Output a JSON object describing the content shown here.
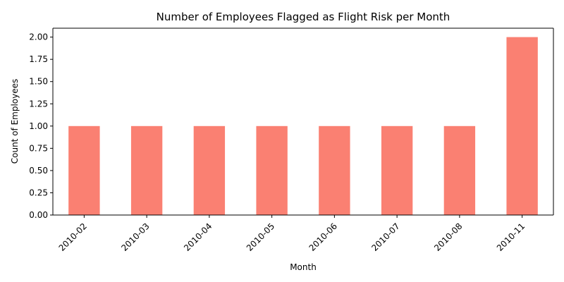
{
  "chart_data": {
    "type": "bar",
    "title": "Number of Employees Flagged as Flight Risk per Month",
    "xlabel": "Month",
    "ylabel": "Count of Employees",
    "categories": [
      "2010-02",
      "2010-03",
      "2010-04",
      "2010-05",
      "2010-06",
      "2010-07",
      "2010-08",
      "2010-11"
    ],
    "values": [
      1,
      1,
      1,
      1,
      1,
      1,
      1,
      2
    ],
    "ylim": [
      0,
      2.1
    ],
    "yticks": [
      "0.00",
      "0.25",
      "0.50",
      "0.75",
      "1.00",
      "1.25",
      "1.50",
      "1.75",
      "2.00"
    ],
    "bar_color": "#fa8072",
    "grid": false,
    "legend": "none"
  }
}
